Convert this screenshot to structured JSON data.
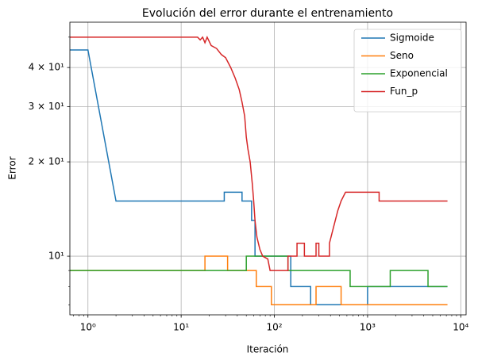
{
  "chart_data": {
    "type": "line",
    "title": "Evolución del error durante el entrenamiento",
    "xlabel": "Iteración",
    "ylabel": "Error",
    "xscale": "log",
    "yscale": "log",
    "grid": true,
    "legend": "upper right",
    "xlim": [
      0.64,
      11400
    ],
    "ylim": [
      6.5,
      55.8
    ],
    "xticks": [
      {
        "value": 1,
        "label": "10⁰"
      },
      {
        "value": 10,
        "label": "10¹"
      },
      {
        "value": 100,
        "label": "10²"
      },
      {
        "value": 1000,
        "label": "10³"
      },
      {
        "value": 10000,
        "label": "10⁴"
      }
    ],
    "xminor_ticks": [
      0.7,
      0.8,
      0.9,
      2,
      3,
      4,
      5,
      6,
      7,
      8,
      9,
      20,
      30,
      40,
      50,
      60,
      70,
      80,
      90,
      200,
      300,
      400,
      500,
      600,
      700,
      800,
      900,
      2000,
      3000,
      4000,
      5000,
      6000,
      7000,
      8000,
      9000
    ],
    "yticks": [
      {
        "value": 10,
        "label": "10¹"
      },
      {
        "value": 20,
        "label": "2 × 10¹"
      },
      {
        "value": 30,
        "label": "3 × 10¹"
      },
      {
        "value": 40,
        "label": "4 × 10¹"
      }
    ],
    "yminor_ticks": [
      7,
      8,
      9,
      50
    ],
    "series": [
      {
        "name": "Sigmoide",
        "color": "#1f77b4",
        "x": [
          0.64,
          1,
          2,
          29,
          29,
          45,
          45,
          57,
          57,
          62,
          62,
          150,
          150,
          245,
          245,
          1000,
          1000,
          7200
        ],
        "values": [
          45.5,
          45.5,
          15,
          15,
          16,
          16,
          15,
          15,
          13,
          13,
          10,
          10,
          8,
          8,
          7,
          7,
          8,
          8
        ]
      },
      {
        "name": "Seno",
        "color": "#ff7f0e",
        "x": [
          0.64,
          18,
          18,
          31.5,
          31.5,
          64,
          64,
          93,
          93,
          280,
          280,
          520,
          520,
          7200
        ],
        "values": [
          9,
          9,
          10,
          10,
          9,
          9,
          8,
          8,
          7,
          7,
          8,
          8,
          7,
          7
        ]
      },
      {
        "name": "Exponencial",
        "color": "#2ca02c",
        "x": [
          0.64,
          50,
          50,
          140,
          140,
          650,
          650,
          1750,
          1750,
          4450,
          4450,
          7200
        ],
        "values": [
          9,
          9,
          10,
          10,
          9,
          9,
          8,
          8,
          9,
          9,
          8,
          8
        ]
      },
      {
        "name": "Fun_p",
        "color": "#d62728",
        "x": [
          0.64,
          15,
          16,
          17,
          18,
          19,
          21,
          24,
          27,
          30,
          34,
          38,
          42,
          45,
          48,
          50,
          52,
          55,
          58,
          60,
          62,
          65,
          70,
          75,
          85,
          90,
          140,
          140,
          175,
          175,
          210,
          210,
          280,
          280,
          300,
          300,
          390,
          390,
          420,
          450,
          480,
          520,
          580,
          1330,
          1330,
          7200
        ],
        "values": [
          50,
          50,
          49,
          50,
          48,
          50,
          47,
          46,
          44,
          43,
          40,
          37,
          34,
          31,
          28,
          24,
          22,
          20,
          17,
          15,
          13,
          11.5,
          10.5,
          10,
          9.8,
          9,
          9,
          10,
          10,
          11,
          11,
          10,
          10,
          11,
          11,
          10,
          10,
          11,
          12,
          13,
          14,
          15,
          16,
          16,
          15,
          15
        ]
      }
    ]
  }
}
